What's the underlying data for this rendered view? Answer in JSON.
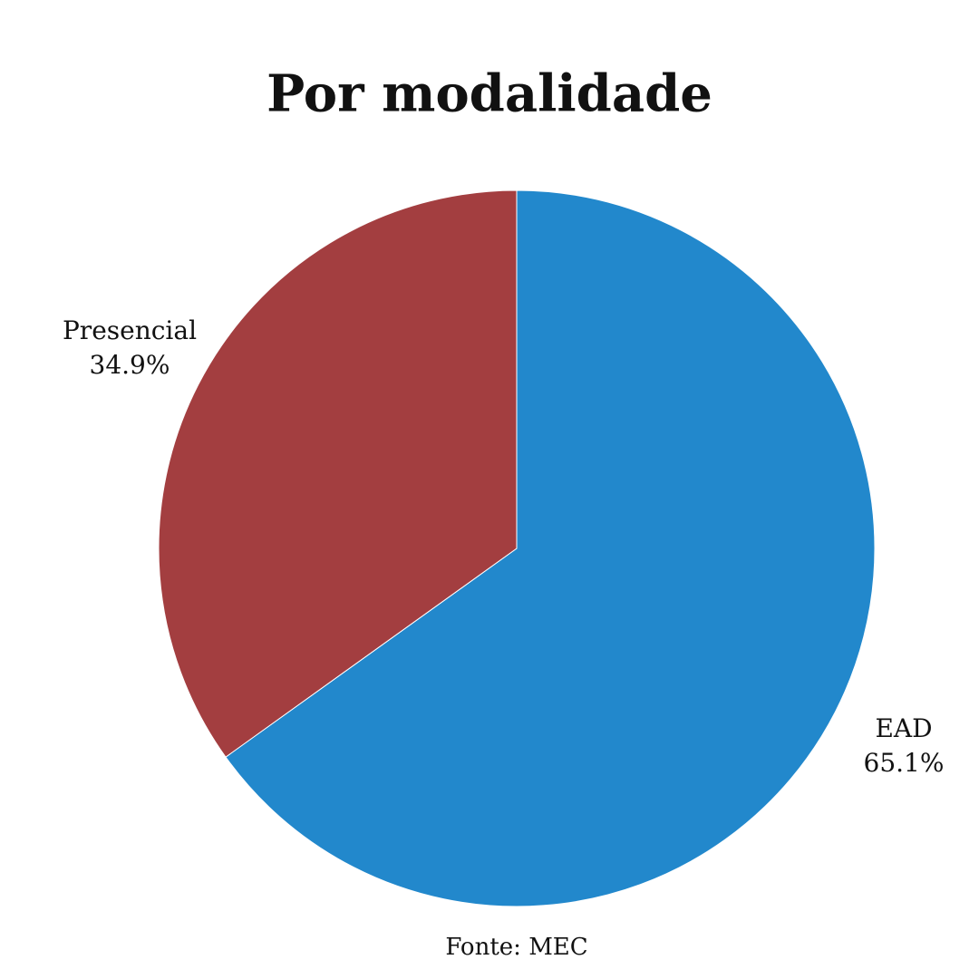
{
  "chart_data": {
    "type": "pie",
    "title": "Por modalidade",
    "categories": [
      "EAD",
      "Presencial"
    ],
    "values": [
      65.1,
      34.9
    ],
    "value_labels": [
      "65.1%",
      "34.9%"
    ],
    "colors": [
      "#2288cc",
      "#a33e40"
    ],
    "source": "Fonte: MEC"
  }
}
